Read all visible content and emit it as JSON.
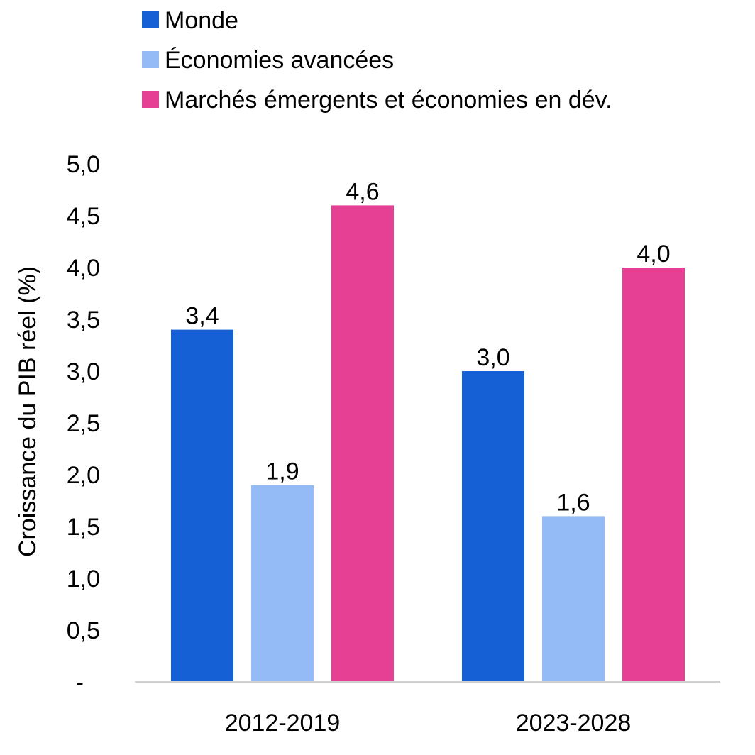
{
  "chart_data": {
    "type": "bar",
    "title": "",
    "xlabel": "",
    "ylabel": "Croissance du PIB réel (%)",
    "categories": [
      "2012-2019",
      "2023-2028"
    ],
    "series": [
      {
        "name": "Monde",
        "color": "#1560d4",
        "values": [
          3.4,
          3.0
        ],
        "labels": [
          "3,4",
          "3,0"
        ]
      },
      {
        "name": "Économies avancées",
        "color": "#94bbf5",
        "values": [
          1.9,
          1.6
        ],
        "labels": [
          "1,9",
          "1,6"
        ]
      },
      {
        "name": "Marchés émergents et économies en dév.",
        "color": "#e64095",
        "values": [
          4.6,
          4.0
        ],
        "labels": [
          "4,6",
          "4,0"
        ]
      }
    ],
    "ylim": [
      0,
      5
    ],
    "yticks": [
      {
        "value": 0,
        "label": "-"
      },
      {
        "value": 0.5,
        "label": "0,5"
      },
      {
        "value": 1,
        "label": "1,0"
      },
      {
        "value": 1.5,
        "label": "1,5"
      },
      {
        "value": 2,
        "label": "2,0"
      },
      {
        "value": 2.5,
        "label": "2,5"
      },
      {
        "value": 3,
        "label": "3,0"
      },
      {
        "value": 3.5,
        "label": "3,5"
      },
      {
        "value": 4,
        "label": "4,0"
      },
      {
        "value": 4.5,
        "label": "4,5"
      },
      {
        "value": 5,
        "label": "5,0"
      }
    ],
    "grid": false,
    "legend": "top",
    "axis_color": "#d0d0d0"
  }
}
